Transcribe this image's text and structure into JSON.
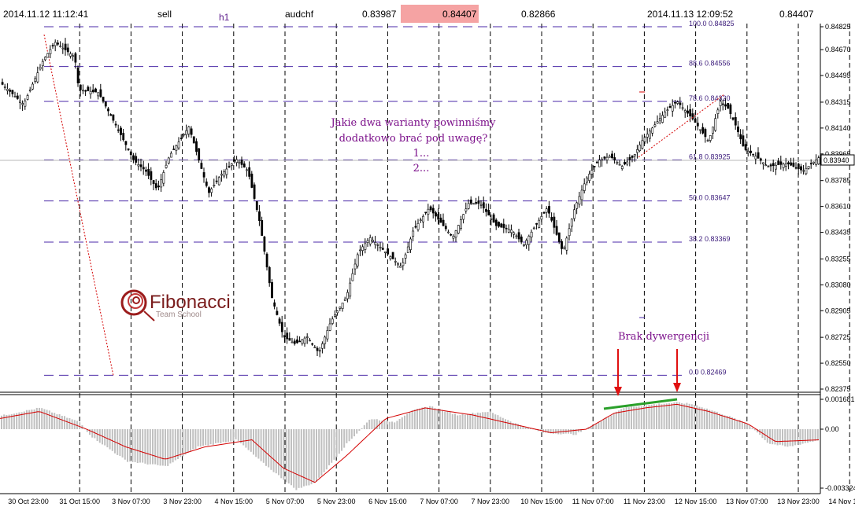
{
  "header": {
    "time_start": "2014.11.12 11:12:41",
    "side": "sell",
    "timeframe": "h1",
    "symbol": "audchf",
    "price_entry": "0.83987",
    "price_highlight": "0.84407",
    "price_low": "0.82866",
    "time_end": "2014.11.13 12:09:52",
    "price_right": "0.84407"
  },
  "colors": {
    "highlight": "#f5a3a3",
    "fib_line": "#4b2aa8",
    "indicator_line": "#d40000",
    "histogram": "#c0c0c0",
    "trend": "#2aa02a",
    "arrow": "#e01010",
    "note": "#7b0f8a"
  },
  "fib_levels": [
    {
      "label": "100.0  0.84825",
      "price": 0.84825
    },
    {
      "label": "88.6  0.84556",
      "price": 0.84556
    },
    {
      "label": "78.6  0.84320",
      "price": 0.8432
    },
    {
      "label": "61.8  0.83925",
      "price": 0.83925
    },
    {
      "label": "50.0  0.83647",
      "price": 0.83647
    },
    {
      "label": "38.2  0.83369",
      "price": 0.83369
    },
    {
      "label": "0.0  0.82469",
      "price": 0.82469
    }
  ],
  "price_axis": {
    "ticks": [
      "0.84825",
      "0.84670",
      "0.84495",
      "0.84315",
      "0.84140",
      "0.83965",
      "0.83785",
      "0.83610",
      "0.83435",
      "0.83255",
      "0.83080",
      "0.82905",
      "0.82725",
      "0.82550",
      "0.82375"
    ],
    "current": "0.83940",
    "ylim": [
      0.82375,
      0.84825
    ]
  },
  "indicator_axis": {
    "ticks": [
      "0.001681",
      "0.00",
      "-0.003324"
    ]
  },
  "time_axis": {
    "labels": [
      "30 Oct 23:00",
      "31 Oct 15:00",
      "3 Nov 07:00",
      "3 Nov 23:00",
      "4 Nov 15:00",
      "5 Nov 07:00",
      "5 Nov 23:00",
      "6 Nov 15:00",
      "7 Nov 07:00",
      "7 Nov 23:00",
      "10 Nov 15:00",
      "11 Nov 07:00",
      "11 Nov 23:00",
      "12 Nov 15:00",
      "13 Nov 07:00",
      "13 Nov 23:00",
      "14 Nov 15:00"
    ]
  },
  "annotations": {
    "question": [
      "Jakie dwa warianty powinniśmy",
      "dodatkowo brać pod uwagę?",
      "1...",
      "2..."
    ],
    "divergence": "Brak dywergencji"
  },
  "logo": {
    "name": "Fibonacci",
    "sub": "Team School"
  },
  "chart_data": {
    "type": "candlestick",
    "symbol": "audchf",
    "timeframe": "h1",
    "y_anchors": [
      [
        0,
        0.8445
      ],
      [
        30,
        0.843
      ],
      [
        55,
        0.846
      ],
      [
        70,
        0.8472
      ],
      [
        95,
        0.8462
      ],
      [
        100,
        0.844
      ],
      [
        125,
        0.8438
      ],
      [
        150,
        0.8413
      ],
      [
        170,
        0.8392
      ],
      [
        185,
        0.8385
      ],
      [
        200,
        0.8372
      ],
      [
        215,
        0.8395
      ],
      [
        240,
        0.8415
      ],
      [
        265,
        0.837
      ],
      [
        280,
        0.8382
      ],
      [
        300,
        0.8393
      ],
      [
        315,
        0.8385
      ],
      [
        330,
        0.835
      ],
      [
        345,
        0.83
      ],
      [
        360,
        0.8273
      ],
      [
        375,
        0.8268
      ],
      [
        390,
        0.8273
      ],
      [
        405,
        0.8262
      ],
      [
        420,
        0.8283
      ],
      [
        440,
        0.83
      ],
      [
        455,
        0.833
      ],
      [
        470,
        0.834
      ],
      [
        490,
        0.833
      ],
      [
        510,
        0.832
      ],
      [
        525,
        0.8345
      ],
      [
        545,
        0.836
      ],
      [
        560,
        0.835
      ],
      [
        575,
        0.834
      ],
      [
        595,
        0.8363
      ],
      [
        610,
        0.8363
      ],
      [
        630,
        0.8348
      ],
      [
        650,
        0.8345
      ],
      [
        665,
        0.8335
      ],
      [
        680,
        0.8348
      ],
      [
        695,
        0.836
      ],
      [
        715,
        0.833
      ],
      [
        730,
        0.836
      ],
      [
        745,
        0.838
      ],
      [
        760,
        0.8392
      ],
      [
        775,
        0.8395
      ],
      [
        790,
        0.8388
      ],
      [
        805,
        0.8395
      ],
      [
        815,
        0.8405
      ],
      [
        830,
        0.8415
      ],
      [
        845,
        0.8425
      ],
      [
        860,
        0.8432
      ],
      [
        880,
        0.842
      ],
      [
        900,
        0.8405
      ],
      [
        915,
        0.8432
      ],
      [
        925,
        0.8427
      ],
      [
        935,
        0.8415
      ],
      [
        945,
        0.84
      ],
      [
        960,
        0.8395
      ],
      [
        975,
        0.8388
      ],
      [
        1000,
        0.839
      ],
      [
        1020,
        0.8385
      ],
      [
        1040,
        0.8394
      ]
    ],
    "histogram_anchors": [
      [
        0,
        0.00075
      ],
      [
        50,
        0.0012
      ],
      [
        100,
        0.0004
      ],
      [
        115,
        -0.0004
      ],
      [
        160,
        -0.0018
      ],
      [
        210,
        -0.0021
      ],
      [
        250,
        -0.001
      ],
      [
        300,
        -0.0006
      ],
      [
        330,
        -0.0018
      ],
      [
        375,
        -0.0034
      ],
      [
        400,
        -0.003
      ],
      [
        440,
        -0.0008
      ],
      [
        470,
        0.0006
      ],
      [
        500,
        0.0004
      ],
      [
        520,
        0.001
      ],
      [
        545,
        0.0013
      ],
      [
        580,
        0.0008
      ],
      [
        620,
        0.001
      ],
      [
        655,
        0.0003
      ],
      [
        690,
        -0.0002
      ],
      [
        730,
        -0.0003
      ],
      [
        760,
        0.0004
      ],
      [
        790,
        0.0012
      ],
      [
        830,
        0.0014
      ],
      [
        860,
        0.0015
      ],
      [
        880,
        0.0014
      ],
      [
        920,
        0.0008
      ],
      [
        950,
        0.0003
      ],
      [
        975,
        -0.0008
      ],
      [
        1000,
        -0.001
      ],
      [
        1040,
        -0.0006
      ]
    ],
    "signal_anchors": [
      [
        0,
        0.0006
      ],
      [
        50,
        0.001
      ],
      [
        110,
        0.0
      ],
      [
        160,
        -0.001
      ],
      [
        210,
        -0.0017
      ],
      [
        260,
        -0.001
      ],
      [
        320,
        -0.0006
      ],
      [
        360,
        -0.0022
      ],
      [
        400,
        -0.003
      ],
      [
        440,
        -0.0015
      ],
      [
        490,
        0.0006
      ],
      [
        540,
        0.0012
      ],
      [
        600,
        0.0008
      ],
      [
        650,
        0.0003
      ],
      [
        700,
        -0.0002
      ],
      [
        745,
        0.0
      ],
      [
        780,
        0.0009
      ],
      [
        820,
        0.0012
      ],
      [
        860,
        0.0014
      ],
      [
        900,
        0.001
      ],
      [
        950,
        0.0003
      ],
      [
        985,
        -0.0007
      ],
      [
        1040,
        -0.0006
      ]
    ]
  }
}
